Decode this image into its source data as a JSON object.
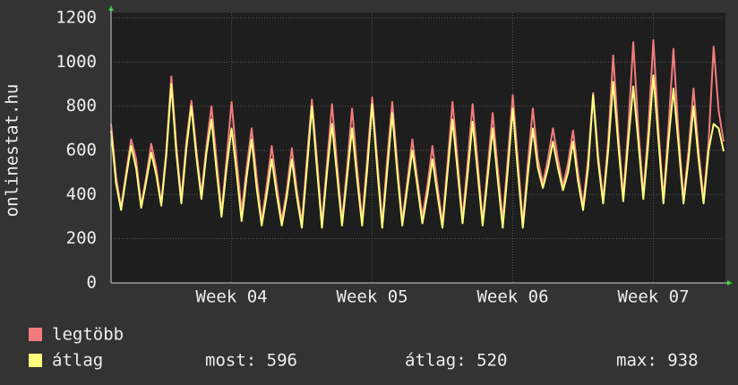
{
  "chart_data": {
    "type": "line",
    "ylabel": "onlinestat.hu",
    "ylim": [
      0,
      1200
    ],
    "yticks": [
      0,
      200,
      400,
      600,
      800,
      1000,
      1200
    ],
    "xlim": [
      0,
      122
    ],
    "xticks": [
      {
        "value": 24,
        "label": "Week 04"
      },
      {
        "value": 52,
        "label": "Week 05"
      },
      {
        "value": 80,
        "label": "Week 06"
      },
      {
        "value": 108,
        "label": "Week 07"
      }
    ],
    "grid": true,
    "series": [
      {
        "name": "legtöbb",
        "color": "#f27c7c",
        "values": [
          720,
          480,
          340,
          500,
          650,
          560,
          350,
          480,
          630,
          520,
          360,
          600,
          935,
          620,
          380,
          640,
          825,
          600,
          400,
          620,
          800,
          560,
          320,
          560,
          820,
          560,
          320,
          520,
          700,
          480,
          280,
          440,
          620,
          440,
          280,
          420,
          610,
          420,
          270,
          560,
          830,
          560,
          270,
          540,
          810,
          540,
          280,
          520,
          790,
          520,
          280,
          560,
          840,
          560,
          270,
          560,
          820,
          540,
          280,
          460,
          650,
          470,
          300,
          440,
          620,
          440,
          270,
          540,
          820,
          560,
          290,
          540,
          810,
          550,
          280,
          520,
          770,
          520,
          280,
          560,
          850,
          560,
          270,
          540,
          790,
          560,
          450,
          560,
          700,
          560,
          440,
          540,
          690,
          500,
          350,
          560,
          860,
          580,
          380,
          640,
          1030,
          680,
          390,
          700,
          1090,
          700,
          400,
          700,
          1100,
          700,
          380,
          700,
          1060,
          680,
          380,
          600,
          880,
          600,
          380,
          640,
          1070,
          780,
          640
        ]
      },
      {
        "name": "átlag",
        "color": "#ffff80",
        "values": [
          690,
          450,
          330,
          480,
          620,
          520,
          340,
          460,
          590,
          490,
          350,
          580,
          900,
          590,
          360,
          610,
          800,
          570,
          380,
          590,
          740,
          510,
          300,
          520,
          700,
          500,
          280,
          480,
          650,
          430,
          260,
          400,
          560,
          400,
          260,
          390,
          560,
          390,
          250,
          520,
          800,
          520,
          250,
          500,
          720,
          490,
          260,
          480,
          700,
          470,
          260,
          510,
          810,
          520,
          250,
          510,
          770,
          500,
          260,
          430,
          600,
          440,
          270,
          400,
          560,
          400,
          250,
          500,
          740,
          510,
          270,
          490,
          730,
          500,
          260,
          480,
          700,
          470,
          250,
          510,
          790,
          510,
          250,
          490,
          700,
          520,
          430,
          520,
          640,
          520,
          420,
          500,
          640,
          460,
          330,
          520,
          850,
          550,
          360,
          600,
          910,
          630,
          370,
          640,
          890,
          640,
          380,
          640,
          940,
          650,
          360,
          640,
          880,
          630,
          360,
          560,
          800,
          560,
          360,
          600,
          720,
          700,
          596
        ]
      }
    ],
    "legend_stats": [
      "most: 596",
      "átlag: 520",
      "max: 938"
    ]
  }
}
